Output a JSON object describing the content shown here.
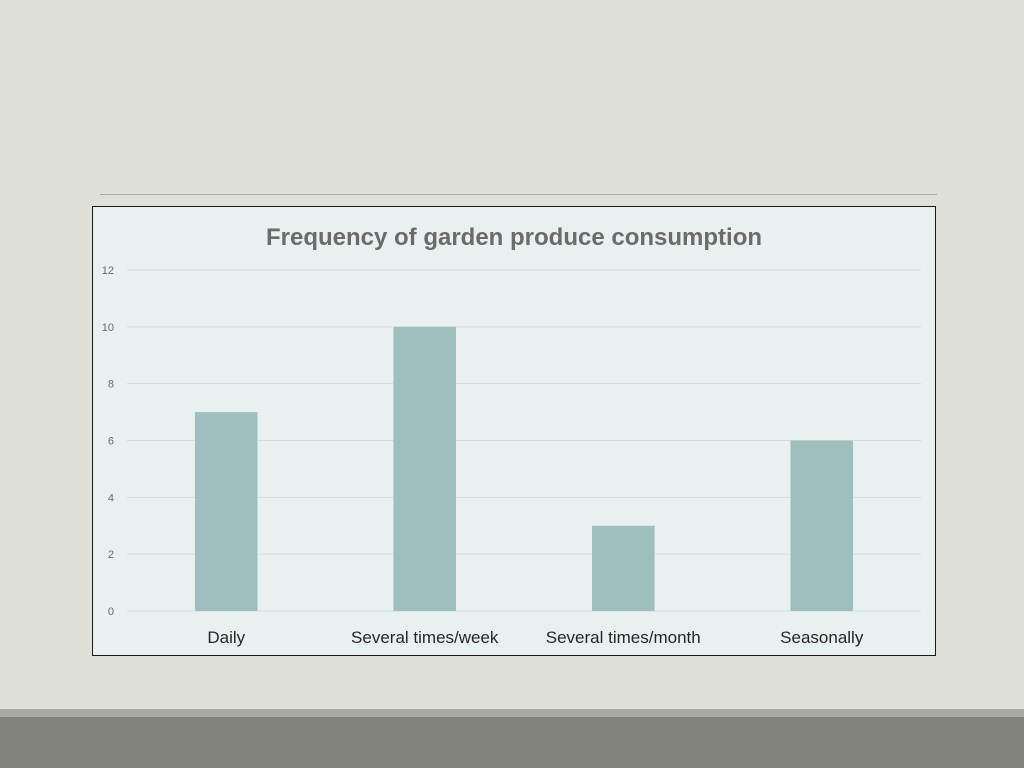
{
  "slide": {
    "background_color": "#e0e0db",
    "footer_color": "#81827b"
  },
  "chart_data": {
    "type": "bar",
    "title": "Frequency of garden produce consumption",
    "xlabel": "",
    "ylabel": "",
    "categories": [
      "Daily",
      "Several times/week",
      "Several times/month",
      "Seasonally"
    ],
    "values": [
      7,
      10,
      3,
      6
    ],
    "ylim": [
      0,
      12
    ],
    "yticks": [
      "0",
      "2",
      "4",
      "6",
      "8",
      "10",
      "12"
    ],
    "grid": true,
    "legend": "none",
    "bar_color": "#9fbfbf",
    "plot_background": "#e9f0f0"
  }
}
